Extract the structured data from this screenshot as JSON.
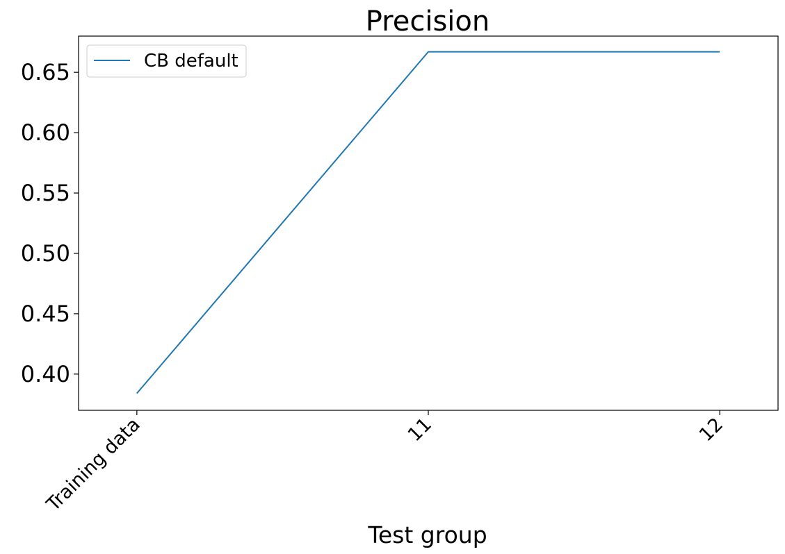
{
  "chart_data": {
    "type": "line",
    "title": "Precision",
    "xlabel": "Test group",
    "ylabel": "",
    "categories": [
      "Training data",
      "11",
      "12"
    ],
    "series": [
      {
        "name": "CB default",
        "values": [
          0.384,
          0.667,
          0.667
        ],
        "color": "#1f77b4"
      }
    ],
    "ylim": [
      0.37,
      0.68
    ],
    "yticks": [
      0.4,
      0.45,
      0.5,
      0.55,
      0.6,
      0.65
    ],
    "ytick_labels": [
      "0.40",
      "0.45",
      "0.50",
      "0.55",
      "0.60",
      "0.65"
    ],
    "grid": false,
    "legend_position": "top-left"
  }
}
